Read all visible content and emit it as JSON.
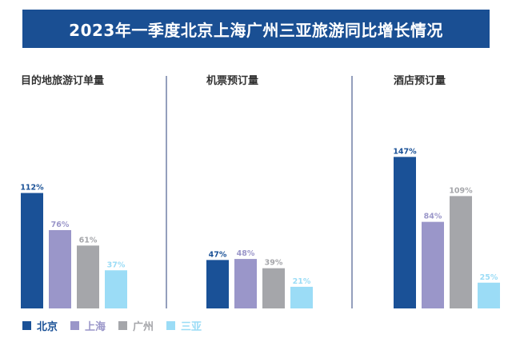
{
  "chart_data": {
    "type": "bar",
    "title": "2023年一季度北京上海广州三亚旅游同比增长情况",
    "categories": [
      "北京",
      "上海",
      "广州",
      "三亚"
    ],
    "colors": [
      "#1a5197",
      "#9a96c9",
      "#a5a6aa",
      "#9bdcf6"
    ],
    "panels": [
      {
        "title": "目的地旅游订单量",
        "values": [
          112,
          76,
          61,
          37
        ],
        "labels": [
          "112%",
          "76%",
          "61%",
          "37%"
        ]
      },
      {
        "title": "机票预订量",
        "values": [
          47,
          48,
          39,
          21
        ],
        "labels": [
          "47%",
          "48%",
          "39%",
          "21%"
        ]
      },
      {
        "title": "酒店预订量",
        "values": [
          147,
          84,
          109,
          25
        ],
        "labels": [
          "147%",
          "84%",
          "109%",
          "25%"
        ]
      }
    ]
  }
}
